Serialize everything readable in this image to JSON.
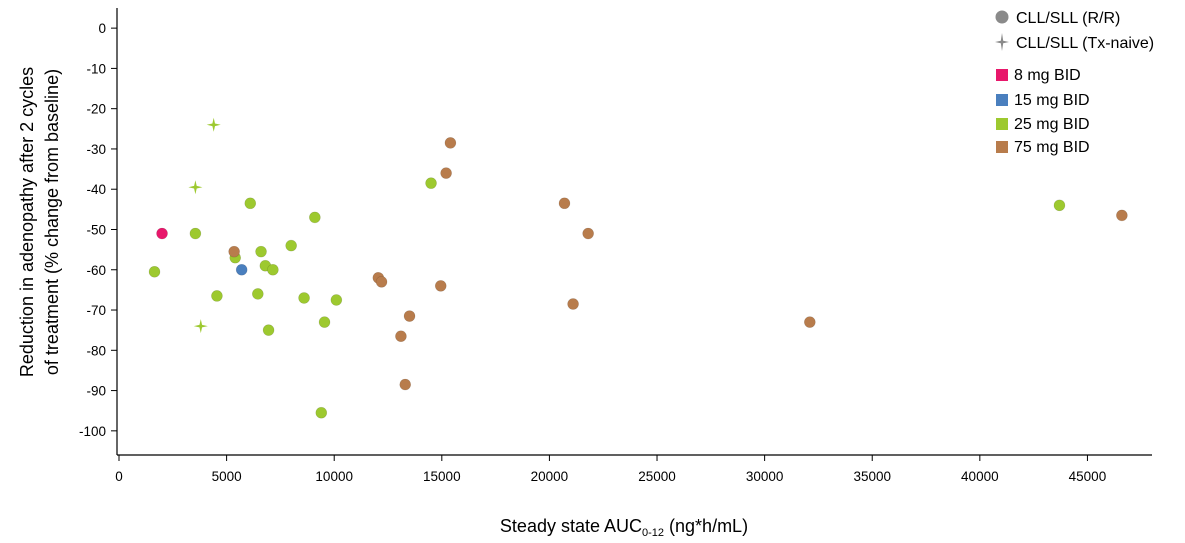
{
  "chart_data": {
    "type": "scatter",
    "xlabel": "Steady state AUC",
    "xlabel_sub": "0-12",
    "xlabel_unit": " (ng*h/mL)",
    "ylabel_line1": "Reduction in adenopathy after 2 cycles",
    "ylabel_line2": "of treatment (% change from baseline)",
    "xlim": [
      0,
      48000
    ],
    "ylim": [
      -106,
      5
    ],
    "x_ticks": [
      0,
      5000,
      10000,
      15000,
      20000,
      25000,
      30000,
      35000,
      40000,
      45000
    ],
    "y_ticks": [
      0,
      -10,
      -20,
      -30,
      -40,
      -50,
      -60,
      -70,
      -80,
      -90,
      -100
    ],
    "grid": false,
    "legend_position": "top-right",
    "marker_legend": [
      {
        "label": "CLL/SLL (R/R)",
        "marker": "circle"
      },
      {
        "label": "CLL/SLL (Tx-naive)",
        "marker": "star4"
      }
    ],
    "dose_legend": [
      {
        "label": "8 mg BID",
        "color": "#e8176b"
      },
      {
        "label": "15 mg BID",
        "color": "#4a7fbe"
      },
      {
        "label": "25 mg BID",
        "color": "#9dc92f"
      },
      {
        "label": "75 mg BID",
        "color": "#b87c4c"
      }
    ],
    "series": [
      {
        "name": "8 mg BID",
        "color": "#e8176b",
        "marker": "circle",
        "points": [
          [
            2000,
            -51
          ]
        ]
      },
      {
        "name": "15 mg BID",
        "color": "#4a7fbe",
        "marker": "circle",
        "points": [
          [
            5700,
            -60
          ]
        ]
      },
      {
        "name": "25 mg BID",
        "color": "#9dc92f",
        "marker": "circle",
        "points": [
          [
            1650,
            -60.5
          ],
          [
            3550,
            -51
          ],
          [
            4550,
            -66.5
          ],
          [
            5400,
            -57
          ],
          [
            6100,
            -43.5
          ],
          [
            6450,
            -66
          ],
          [
            6600,
            -55.5
          ],
          [
            6800,
            -59
          ],
          [
            6950,
            -75
          ],
          [
            7150,
            -60
          ],
          [
            8000,
            -54
          ],
          [
            8600,
            -67
          ],
          [
            9100,
            -47
          ],
          [
            9400,
            -95.5
          ],
          [
            9550,
            -73
          ],
          [
            10100,
            -67.5
          ],
          [
            14500,
            -38.5
          ],
          [
            43700,
            -44
          ]
        ]
      },
      {
        "name": "25 mg BID",
        "color": "#9dc92f",
        "marker": "star4",
        "points": [
          [
            4400,
            -24
          ],
          [
            3550,
            -39.5
          ],
          [
            3800,
            -74
          ]
        ]
      },
      {
        "name": "75 mg BID",
        "color": "#b87c4c",
        "marker": "circle",
        "points": [
          [
            5350,
            -55.5
          ],
          [
            12050,
            -62
          ],
          [
            12200,
            -63
          ],
          [
            13100,
            -76.5
          ],
          [
            13300,
            -88.5
          ],
          [
            13500,
            -71.5
          ],
          [
            14950,
            -64
          ],
          [
            15200,
            -36
          ],
          [
            15400,
            -28.5
          ],
          [
            20700,
            -43.5
          ],
          [
            21100,
            -68.5
          ],
          [
            21800,
            -51
          ],
          [
            32100,
            -73
          ],
          [
            46600,
            -46.5
          ]
        ]
      }
    ]
  }
}
